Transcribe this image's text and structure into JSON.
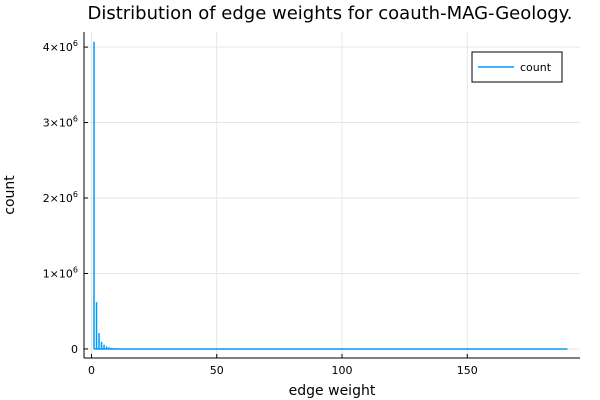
{
  "chart_data": {
    "type": "line",
    "title": "Distribution of edge weights for coauth-MAG-Geology.",
    "xlabel": "edge weight",
    "ylabel": "count",
    "xlim": [
      -3,
      195
    ],
    "ylim": [
      -120000,
      4200000
    ],
    "x_ticks": [
      {
        "value": 0,
        "label": "0"
      },
      {
        "value": 50,
        "label": "50"
      },
      {
        "value": 100,
        "label": "100"
      },
      {
        "value": 150,
        "label": "150"
      }
    ],
    "y_ticks": [
      {
        "value": 0,
        "base": "0",
        "exp": ""
      },
      {
        "value": 1000000,
        "base": "1×10",
        "exp": "6"
      },
      {
        "value": 2000000,
        "base": "2×10",
        "exp": "6"
      },
      {
        "value": 3000000,
        "base": "3×10",
        "exp": "6"
      },
      {
        "value": 4000000,
        "base": "4×10",
        "exp": "6"
      }
    ],
    "grid": true,
    "legend_position": "top-right",
    "series": [
      {
        "name": "count",
        "color": "#009AFA",
        "x": [
          1,
          2,
          3,
          4,
          5,
          6,
          7,
          8,
          9,
          10,
          12,
          15,
          20,
          30,
          50,
          100,
          150,
          190
        ],
        "values": [
          4070000,
          620000,
          210000,
          95000,
          55000,
          34000,
          22000,
          15000,
          11000,
          8000,
          5000,
          3000,
          1500,
          600,
          200,
          40,
          10,
          2
        ]
      }
    ]
  }
}
